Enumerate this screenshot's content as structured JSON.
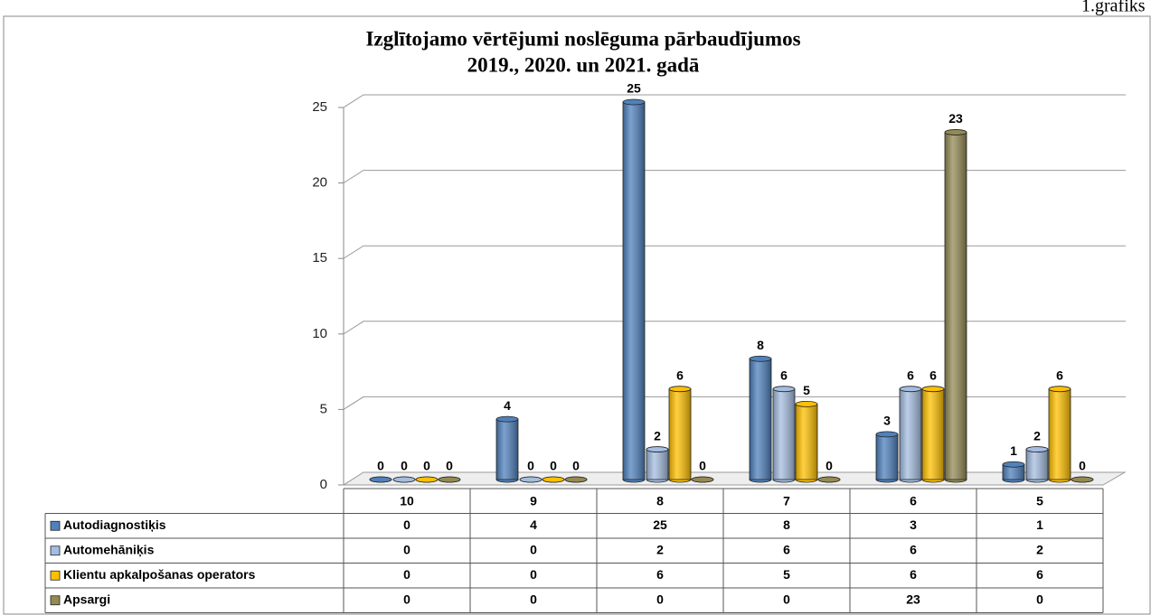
{
  "caption": "1.grafiks",
  "chart_data": {
    "type": "bar3d",
    "title": [
      "Izglītojamo vērtējumi noslēguma pārbaudījumos",
      "2019., 2020. un 2021. gadā"
    ],
    "categories": [
      "10",
      "9",
      "8",
      "7",
      "6",
      "5"
    ],
    "series": [
      {
        "name": "Autodiagnostiķis",
        "color": "#4f81bd",
        "values": [
          0,
          4,
          25,
          8,
          3,
          1
        ]
      },
      {
        "name": "Automehāniķis",
        "color": "#a4bde0",
        "values": [
          0,
          0,
          2,
          6,
          6,
          2
        ]
      },
      {
        "name": "Klientu apkalpošanas operators",
        "color": "#ffc000",
        "values": [
          0,
          0,
          6,
          5,
          6,
          6
        ]
      },
      {
        "name": "Apsargi",
        "color": "#948a54",
        "values": [
          0,
          0,
          0,
          0,
          23,
          0
        ]
      }
    ],
    "ylim": [
      0,
      25
    ],
    "yticks": [
      0,
      5,
      10,
      15,
      20,
      25
    ],
    "grid": true,
    "data_table": true
  }
}
